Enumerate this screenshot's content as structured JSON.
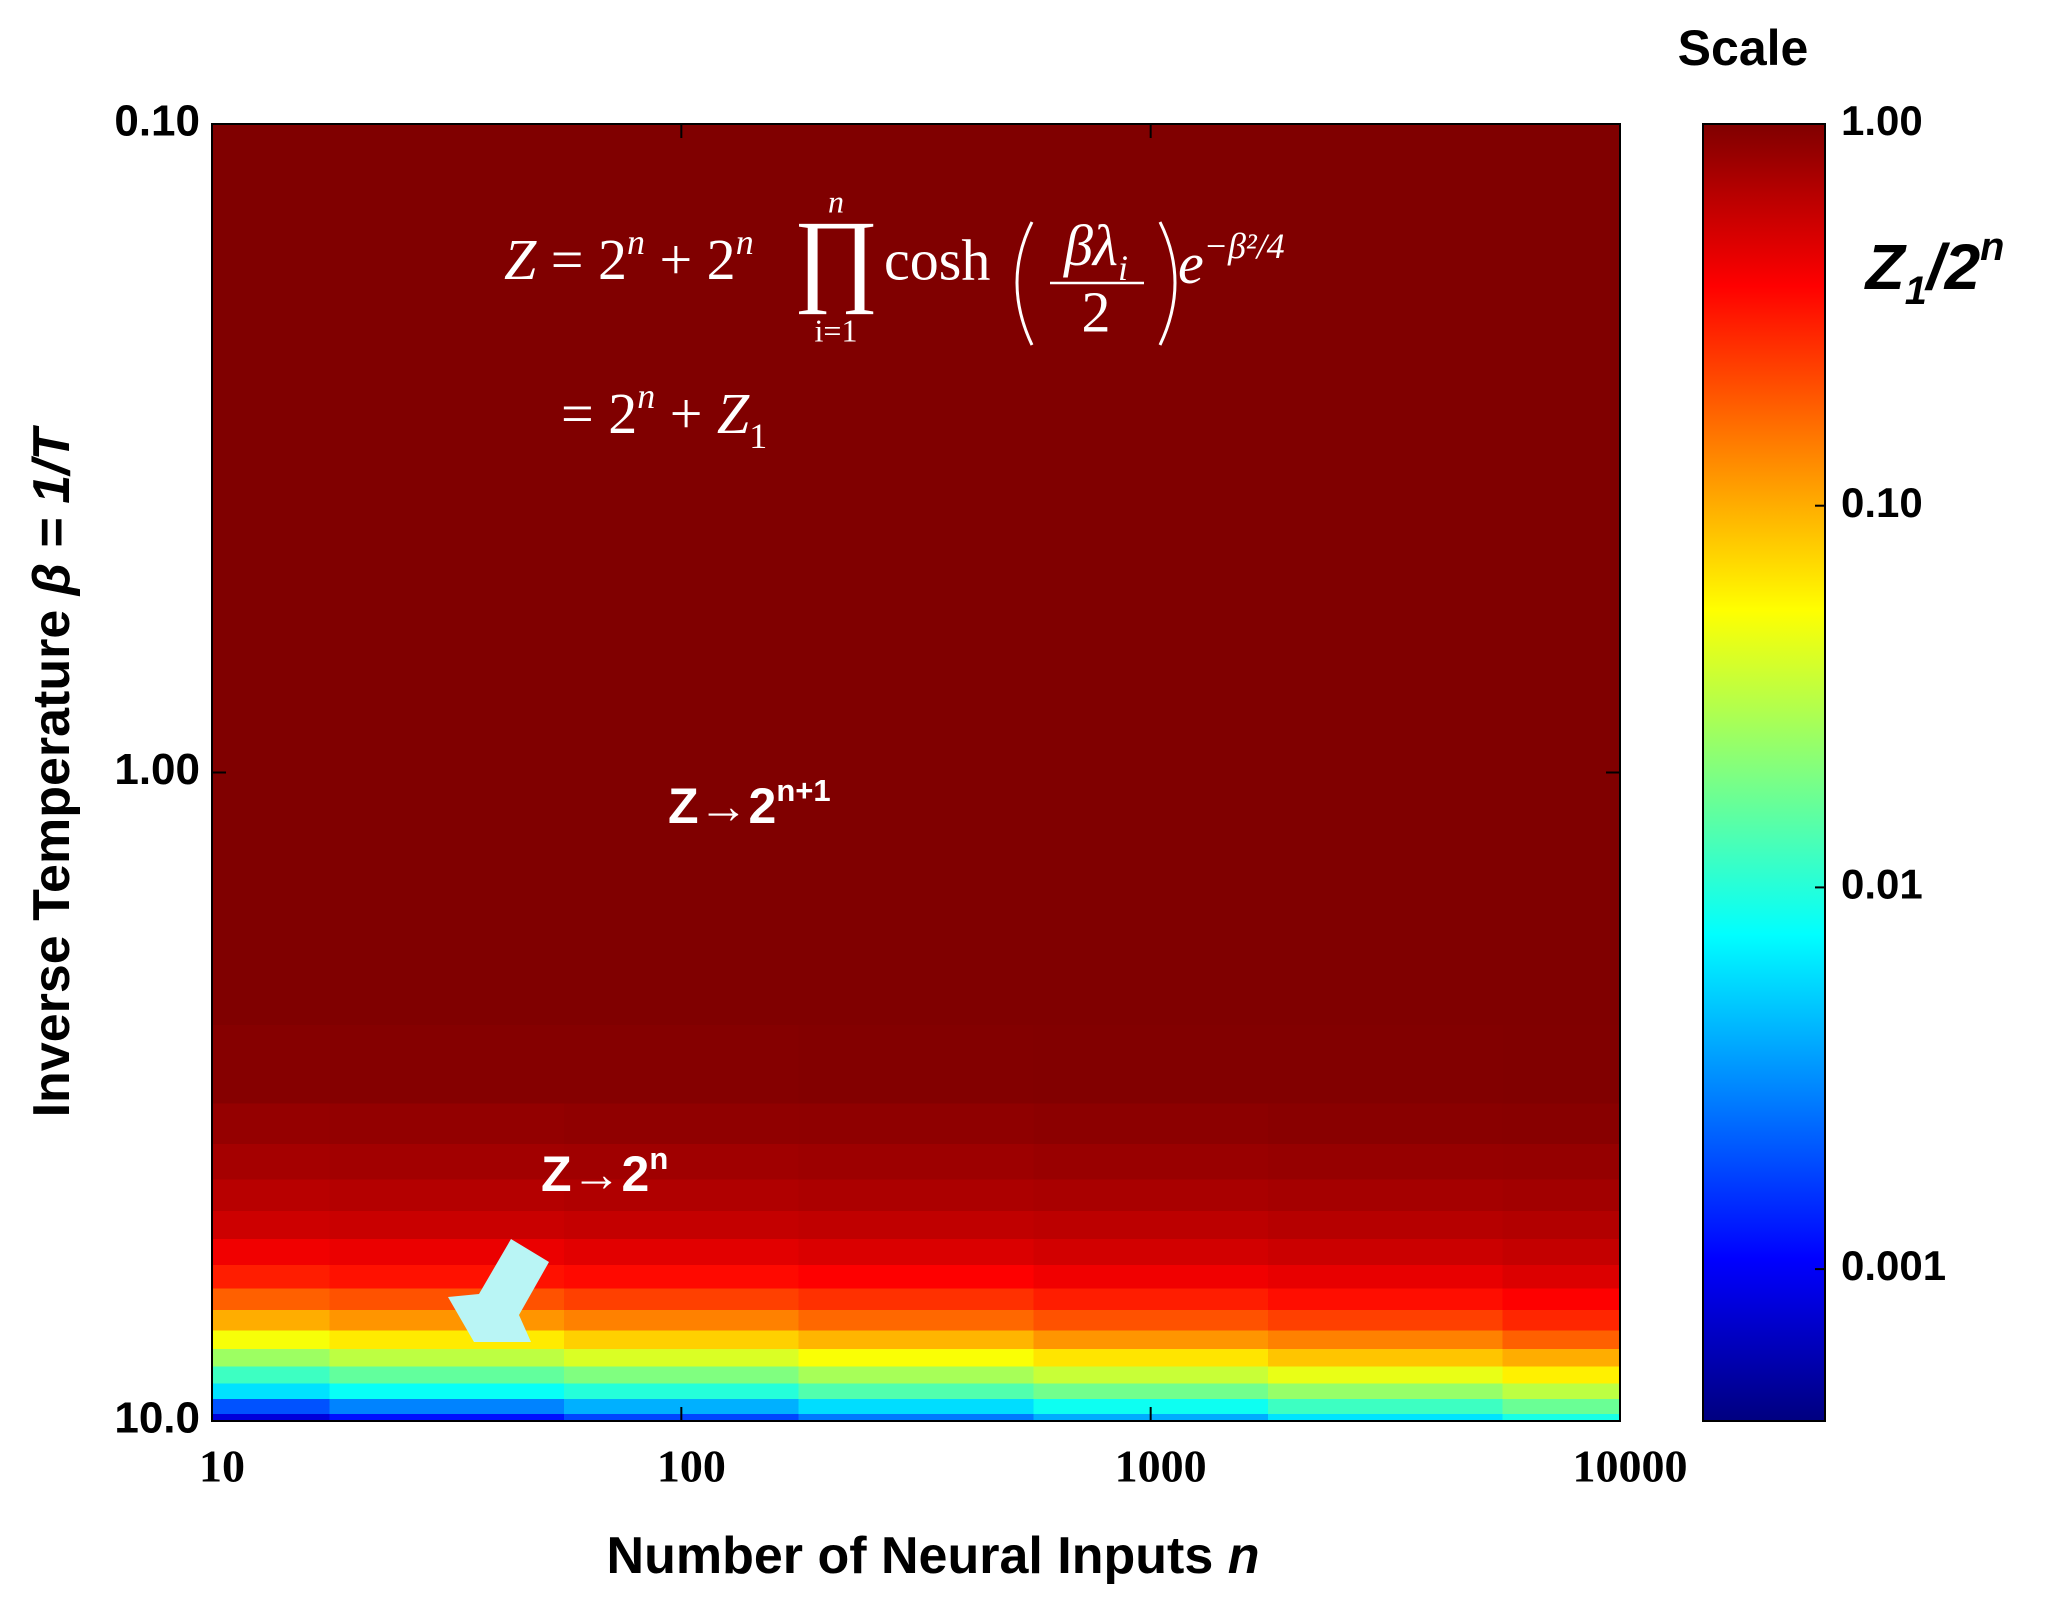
{
  "chart_data": {
    "type": "heatmap",
    "x_label": [
      {
        "text": "Number of Neural Inputs "
      },
      {
        "text": "n",
        "italic": true
      }
    ],
    "y_label": [
      {
        "text": "Inverse Temperature "
      },
      {
        "text": "β = 1/T",
        "italic": true
      }
    ],
    "x": [
      10,
      31.6,
      100,
      316,
      1000,
      3162,
      10000
    ],
    "y": [
      0.1,
      1,
      2,
      3,
      3.5,
      4,
      4.5,
      5,
      5.5,
      6,
      6.5,
      7,
      7.5,
      8,
      8.5,
      9,
      9.5,
      10
    ],
    "z": [
      [
        1,
        1,
        1,
        1,
        1,
        1,
        1
      ],
      [
        1,
        1,
        1,
        1,
        1,
        1,
        1
      ],
      [
        1,
        1,
        1,
        1,
        1,
        1,
        1
      ],
      [
        0.95,
        0.96,
        0.96,
        0.97,
        0.98,
        0.98,
        0.99
      ],
      [
        0.85,
        0.86,
        0.88,
        0.89,
        0.91,
        0.93,
        0.94
      ],
      [
        0.75,
        0.77,
        0.78,
        0.8,
        0.82,
        0.84,
        0.85
      ],
      [
        0.65,
        0.67,
        0.69,
        0.71,
        0.73,
        0.75,
        0.77
      ],
      [
        0.55,
        0.57,
        0.59,
        0.61,
        0.63,
        0.66,
        0.68
      ],
      [
        0.42,
        0.44,
        0.47,
        0.5,
        0.53,
        0.56,
        0.59
      ],
      [
        0.3,
        0.33,
        0.35,
        0.38,
        0.42,
        0.45,
        0.49
      ],
      [
        0.18,
        0.2,
        0.23,
        0.26,
        0.3,
        0.34,
        0.38
      ],
      [
        0.1,
        0.12,
        0.14,
        0.17,
        0.2,
        0.23,
        0.28
      ],
      [
        0.05,
        0.062,
        0.076,
        0.094,
        0.12,
        0.14,
        0.18
      ],
      [
        0.025,
        0.032,
        0.04,
        0.051,
        0.065,
        0.083,
        0.1
      ],
      [
        0.012,
        0.016,
        0.02,
        0.027,
        0.035,
        0.045,
        0.059
      ],
      [
        0.006,
        0.008,
        0.01,
        0.014,
        0.018,
        0.024,
        0.032
      ],
      [
        0.002,
        0.0029,
        0.0041,
        0.0058,
        0.0083,
        0.012,
        0.017
      ],
      [
        0.0008,
        0.0012,
        0.0018,
        0.0027,
        0.004,
        0.0061,
        0.0091
      ]
    ],
    "xlim": [
      10,
      10000
    ],
    "ylim": [
      0.1,
      10
    ],
    "x_scale": "log",
    "y_scale": "log",
    "y_inverted": true,
    "xticks": [
      10,
      100,
      1000,
      10000
    ],
    "yticks": [
      {
        "value": 0.1,
        "label": "0.10"
      },
      {
        "value": 1,
        "label": "1.00"
      },
      {
        "value": 10,
        "label": "10.0"
      }
    ],
    "colormap": "jet",
    "colorbar": {
      "title": "Scale",
      "label": [
        {
          "text": "Z"
        },
        {
          "text": "1",
          "shift": "sub"
        },
        {
          "text": "/2"
        },
        {
          "text": "n",
          "shift": "super"
        }
      ],
      "zlim": [
        0.0004,
        1
      ],
      "scale": "log",
      "ticks": [
        {
          "value": 1,
          "label": "1.00"
        },
        {
          "value": 0.1,
          "label": "0.10"
        },
        0.01,
        0.001
      ]
    },
    "annotations": [
      [
        {
          "text": "Z→2"
        },
        {
          "text": "n+1",
          "shift": "super"
        }
      ],
      [
        {
          "text": "Z→2"
        },
        {
          "text": "n",
          "shift": "super"
        }
      ]
    ],
    "equation": {
      "line1": [
        {
          "text": "Z",
          "italic": true
        },
        {
          "text": " = 2"
        },
        {
          "text": "n",
          "shift": "super",
          "italic": true
        },
        {
          "text": " + 2"
        },
        {
          "text": "n",
          "shift": "super",
          "italic": true
        }
      ],
      "product": {
        "symbol": "∏",
        "upper": "n",
        "lower": "i=1"
      },
      "function": "cosh",
      "numerator": [
        {
          "text": "βλ",
          "italic": true
        },
        {
          "text": "i",
          "shift": "sub",
          "italic": true
        }
      ],
      "denominator": "2",
      "exponential": [
        {
          "text": "e",
          "italic": true
        },
        {
          "text": "−β²/4",
          "shift": "super",
          "italic": true
        }
      ],
      "line2": [
        {
          "text": "= 2"
        },
        {
          "text": "n",
          "shift": "super",
          "italic": true
        },
        {
          "text": " + "
        },
        {
          "text": "Z",
          "italic": true
        },
        {
          "text": "1",
          "shift": "sub"
        }
      ]
    }
  }
}
